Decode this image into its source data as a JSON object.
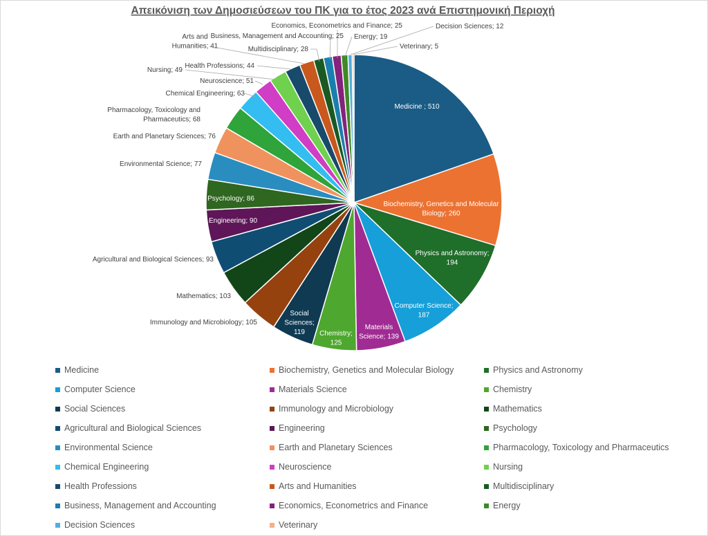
{
  "chart_data": {
    "type": "pie",
    "title": "Απεικόνιση των Δημοσιεύσεων του ΠΚ για το έτος 2023 ανά Επιστημονική Περιοχή",
    "legend_position": "bottom",
    "slices": [
      {
        "label": "Medicine",
        "value": 510,
        "data_label": "Medicine ; 510",
        "color": "#1a5c85"
      },
      {
        "label": "Biochemistry, Genetics and Molecular Biology",
        "value": 260,
        "data_label": "Biochemistry, Genetics and Molecular Biology; 260",
        "color": "#ec7232"
      },
      {
        "label": "Physics and Astronomy",
        "value": 194,
        "data_label": "Physics and Astronomy; 194",
        "color": "#1f6e2a"
      },
      {
        "label": "Computer Science",
        "value": 187,
        "data_label": "Computer Science; 187",
        "color": "#169fd8"
      },
      {
        "label": "Materials Science",
        "value": 139,
        "data_label": "Materials Science; 139",
        "color": "#a02b93"
      },
      {
        "label": "Chemistry",
        "value": 125,
        "data_label": "Chemistry; 125",
        "color": "#4ea72e"
      },
      {
        "label": "Social Sciences",
        "value": 119,
        "data_label": "Social Sciences; 119",
        "color": "#0f3a52"
      },
      {
        "label": "Immunology and Microbiology",
        "value": 105,
        "data_label": "Immunology and Microbiology; 105",
        "color": "#95420f"
      },
      {
        "label": "Mathematics",
        "value": 103,
        "data_label": "Mathematics; 103",
        "color": "#124618"
      },
      {
        "label": "Agricultural and Biological Sciences",
        "value": 93,
        "data_label": "Agricultural and Biological Sciences; 93",
        "color": "#104d73"
      },
      {
        "label": "Engineering",
        "value": 90,
        "data_label": "Engineering; 90",
        "color": "#5e1658"
      },
      {
        "label": "Psychology",
        "value": 86,
        "data_label": "Psychology; 86",
        "color": "#2f6620"
      },
      {
        "label": "Environmental Science",
        "value": 77,
        "data_label": "Environmental Science; 77",
        "color": "#2a8dc0"
      },
      {
        "label": "Earth and Planetary Sciences",
        "value": 76,
        "data_label": "Earth and Planetary Sciences; 76",
        "color": "#f0925e"
      },
      {
        "label": "Pharmacology, Toxicology and Pharmaceutics",
        "value": 68,
        "data_label": "Pharmacology, Toxicology and Pharmaceutics; 68",
        "color": "#2ea43a"
      },
      {
        "label": "Chemical Engineering",
        "value": 63,
        "data_label": "Chemical Engineering; 63",
        "color": "#33bdf0"
      },
      {
        "label": "Neuroscience",
        "value": 51,
        "data_label": "Neuroscience; 51",
        "color": "#cf3ec4"
      },
      {
        "label": "Nursing",
        "value": 49,
        "data_label": "Nursing; 49",
        "color": "#6fd14d"
      },
      {
        "label": "Health Professions",
        "value": 44,
        "data_label": "Health Professions; 44",
        "color": "#174a6b"
      },
      {
        "label": "Arts and Humanities",
        "value": 41,
        "data_label": "Arts and Humanities; 41",
        "color": "#c8581e"
      },
      {
        "label": "Multidisciplinary",
        "value": 28,
        "data_label": "Multidisciplinary; 28",
        "color": "#1a5a22"
      },
      {
        "label": "Business, Management and Accounting",
        "value": 25,
        "data_label": "Business, Management and Accounting; 25",
        "color": "#1b7fae"
      },
      {
        "label": "Economics, Econometrics and Finance",
        "value": 25,
        "data_label": "Economics, Econometrics and Finance; 25",
        "color": "#84237b"
      },
      {
        "label": "Energy",
        "value": 19,
        "data_label": "Energy; 19",
        "color": "#3f8a26"
      },
      {
        "label": "Decision Sciences",
        "value": 12,
        "data_label": "Decision Sciences; 12",
        "color": "#52aee0"
      },
      {
        "label": "Veterinary",
        "value": 5,
        "data_label": "Veterinary; 5",
        "color": "#f5b089"
      }
    ]
  }
}
